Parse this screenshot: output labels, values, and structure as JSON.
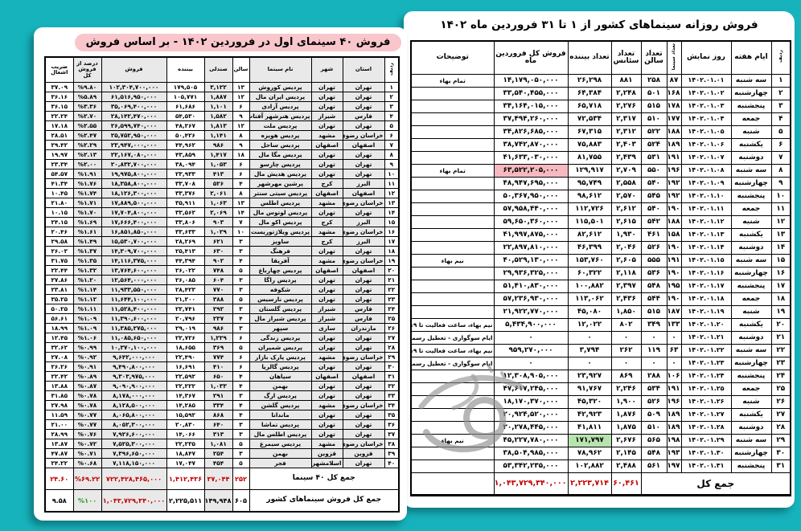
{
  "page": {
    "background_color": "#16b3bd",
    "accent_red": "#c10000",
    "accent_green": "#2c9a2c",
    "title_highlight_color": "#f9c6cc",
    "cell_pink": "#f6b9c0",
    "cell_green": "#b7e3ae"
  },
  "right_table": {
    "title": "فروش روزانه سینماهای کشور از ۱ تا ۳۱ فروردین ماه ۱۴۰۲",
    "headers": [
      "ردیف",
      "ایام هفته",
      "روز نمایش",
      "تعداد سینما",
      "تعداد سالن",
      "تعداد سئانس",
      "تعداد بیننده",
      "فروش کل فروردین ماه",
      "توضیحات"
    ],
    "rows": [
      [
        "۱",
        "سه شنبه",
        "۱۴۰۲.۰۱.۰۱",
        "۸۷",
        "۲۵۸",
        "۸۸۱",
        "۲۶,۲۹۸",
        "۱۴,۱۷۹,۰۵۰,۰۰۰",
        "تمام بهاء"
      ],
      [
        "۲",
        "چهارشنبه",
        "۱۴۰۲.۰۱.۰۲",
        "۱۶۸",
        "۵۰۱",
        "۲,۲۴۸",
        "۶۴,۳۸۴",
        "۳۳,۵۴۰,۴۵۵,۰۰۰",
        ""
      ],
      [
        "۳",
        "پنجشنبه",
        "۱۴۰۲.۰۱.۰۳",
        "۱۷۸",
        "۵۱۵",
        "۲,۲۷۶",
        "۶۵,۷۱۸",
        "۳۴,۱۶۴,۰۱۵,۰۰۰",
        ""
      ],
      [
        "۴",
        "جمعه",
        "۱۴۰۲.۰۱.۰۴",
        "۱۷۷",
        "۵۱۰",
        "۲,۳۱۷",
        "۷۲,۵۳۴",
        "۳۷,۴۹۴,۲۶۰,۰۰۰",
        ""
      ],
      [
        "۵",
        "شنبه",
        "۱۴۰۲.۰۱.۰۵",
        "۱۸۸",
        "۵۲۲",
        "۲,۳۱۲",
        "۶۷,۳۱۵",
        "۳۴,۸۲۶,۶۸۵,۰۰۰",
        ""
      ],
      [
        "۶",
        "یکشنبه",
        "۱۴۰۲.۰۱.۰۶",
        "۱۸۹",
        "۵۲۴",
        "۲,۴۰۳",
        "۷۵,۸۸۳",
        "۳۸,۷۴۲,۸۷۰,۰۰۰",
        ""
      ],
      [
        "۷",
        "دوشنبه",
        "۱۴۰۲.۰۱.۰۷",
        "۱۹۱",
        "۵۳۱",
        "۲,۴۳۹",
        "۸۱,۷۵۵",
        "۴۱,۶۳۳,۰۳۰,۰۰۰",
        ""
      ],
      [
        "۸",
        "سه شنبه",
        "۱۴۰۲.۰۱.۰۸",
        "۱۹۶",
        "۵۵۰",
        "۲,۷۰۹",
        "۱۲۹,۹۱۷",
        "۶۳,۵۲۲,۲۰۵,۰۰۰",
        "تمام بهاء"
      ],
      [
        "۹",
        "چهارشنبه",
        "۱۴۰۲.۰۱.۰۹",
        "۱۹۲",
        "۵۴۰",
        "۲,۵۵۸",
        "۹۵,۷۴۹",
        "۴۸,۹۴۷,۶۹۵,۰۰۰",
        ""
      ],
      [
        "۱۰",
        "پنجشنبه",
        "۱۴۰۲.۰۱.۱۰",
        "۱۹۲",
        "۵۴۵",
        "۲,۵۷۰",
        "۹۸,۶۱۲",
        "۵۰,۳۶۷,۹۵۰,۰۰۰",
        ""
      ],
      [
        "۱۱",
        "جمعه",
        "۱۴۰۲.۰۱.۱۱",
        "۱۹۰",
        "۵۴۰",
        "۲,۶۱۲",
        "۱۱۲,۷۲۶",
        "۵۷,۹۵۸,۴۴۰,۰۰۰",
        ""
      ],
      [
        "۱۲",
        "شنبه",
        "۱۴۰۲.۰۱.۱۲",
        "۱۸۸",
        "۵۴۲",
        "۲,۶۱۵",
        "۱۱۵,۵۰۱",
        "۵۹,۶۵۰,۳۶۰,۰۰۰",
        ""
      ],
      [
        "۱۳",
        "یکشنبه",
        "۱۴۰۲.۰۱.۱۳",
        "۱۵۸",
        "۴۶۱",
        "۱,۹۳۰",
        "۸۲,۶۱۲",
        "۴۱,۹۹۷,۸۷۵,۰۰۰",
        ""
      ],
      [
        "۱۴",
        "دوشنبه",
        "۱۴۰۲.۰۱.۱۴",
        "۱۹۰",
        "۵۲۶",
        "۲,۰۴۶",
        "۴۶,۳۹۹",
        "۲۲,۸۹۷,۸۱۰,۰۰۰",
        ""
      ],
      [
        "۱۵",
        "سه شنبه",
        "۱۴۰۲.۰۱.۱۵",
        "۱۹۱",
        "۵۵۵",
        "۲,۶۰۵",
        "۱۵۳,۷۶۰",
        "۴۰,۵۲۹,۱۳۰,۰۰۰",
        "نیم بهاء"
      ],
      [
        "۱۶",
        "چهارشنبه",
        "۱۴۰۲.۰۱.۱۶",
        "۱۹۰",
        "۵۳۶",
        "۲,۱۱۸",
        "۶۰,۳۲۲",
        "۲۹,۹۳۶,۳۲۵,۰۰۰",
        ""
      ],
      [
        "۱۷",
        "پنجشنبه",
        "۱۴۰۲.۰۱.۱۷",
        "۱۹۵",
        "۵۴۸",
        "۲,۳۹۷",
        "۱۰۰,۸۸۲",
        "۵۱,۴۱۰,۸۳۰,۰۰۰",
        ""
      ],
      [
        "۱۸",
        "جمعه",
        "۱۴۰۲.۰۱.۱۸",
        "۱۹۰",
        "۵۴۴",
        "۲,۴۳۶",
        "۱۱۳,۰۶۲",
        "۵۷,۲۳۶,۹۳۰,۰۰۰",
        ""
      ],
      [
        "۱۹",
        "شنبه",
        "۱۴۰۲.۰۱.۱۹",
        "۱۸۷",
        "۵۱۵",
        "۱,۸۵۰",
        "۴۵,۰۸۰",
        "۲۱,۹۲۲,۷۷۰,۰۰۰",
        ""
      ],
      [
        "۲۰",
        "یکشنبه",
        "۱۴۰۲.۰۱.۲۰",
        "۱۳۳",
        "۳۴۹",
        "۸۰۲",
        "۱۲,۰۲۲",
        "۵,۴۳۴,۹۰۰,۰۰۰",
        "نیم بهاء، ساعت فعالیت تا ۱۹"
      ],
      [
        "۲۱",
        "دوشنبه",
        "۱۴۰۲.۰۱.۲۱",
        "۰",
        "۰",
        "۰",
        "۰",
        "۰",
        "ایام سوگواری - تعطیل رسمی"
      ],
      [
        "۲۲",
        "سه شنبه",
        "۱۴۰۲.۰۱.۲۲",
        "۶۳",
        "۱۱۹",
        "۲۶۲",
        "۳,۷۹۴",
        "۹۵۹,۲۷۰,۰۰۰",
        "نیم بهاء، ساعت فعالیت تا ۱۹"
      ],
      [
        "۲۳",
        "چهارشنبه",
        "۱۴۰۲.۰۱.۲۳",
        "۰",
        "۰",
        "۰",
        "۰",
        "۰",
        "ایام سوگواری - تعطیل رسمی"
      ],
      [
        "۲۴",
        "پنجشنبه",
        "۱۴۰۲.۰۱.۲۴",
        "۱۰۶",
        "۲۸۸",
        "۸۶۹",
        "۲۳,۹۲۷",
        "۱۲,۳۰۸,۹۰۵,۰۰۰",
        ""
      ],
      [
        "۲۵",
        "جمعه",
        "۱۴۰۲.۰۱.۲۵",
        "۱۹۱",
        "۵۳۴",
        "۲,۲۴۶",
        "۹۱,۷۶۷",
        "۴۷,۶۱۷,۲۴۵,۰۰۰",
        ""
      ],
      [
        "۲۶",
        "شنبه",
        "۱۴۰۲.۰۱.۲۶",
        "۱۹۶",
        "۵۲۶",
        "۱,۹۰۰",
        "۴۵,۳۲۰",
        "۱۸,۱۷۰,۳۷۰,۰۰۰",
        ""
      ],
      [
        "۲۷",
        "یکشنبه",
        "۱۴۰۲.۰۱.۲۷",
        "۱۸۹",
        "۵۰۹",
        "۱,۸۷۶",
        "۴۲,۹۲۳",
        "۲۰,۹۲۴,۵۲۰,۰۰۰",
        ""
      ],
      [
        "۲۸",
        "دوشنبه",
        "۱۴۰۲.۰۱.۲۸",
        "۱۸۹",
        "۵۱۰",
        "۱,۸۷۵",
        "۴۱,۸۱۱",
        "۲۰,۲۷۸,۴۴۵,۰۰۰",
        ""
      ],
      [
        "۲۹",
        "سه شنبه",
        "۱۴۰۲.۰۱.۲۹",
        "۱۹۸",
        "۵۶۵",
        "۲,۶۷۶",
        "۱۷۱,۷۹۷",
        "۴۵,۲۲۷,۷۸۰,۰۰۰",
        "نیم بهاء"
      ],
      [
        "۳۰",
        "چهارشنبه",
        "۱۴۰۲.۰۱.۳۰",
        "۱۹۳",
        "۵۴۸",
        "۲,۱۴۵",
        "۷۸,۹۶۲",
        "۳۸,۵۰۴,۹۸۵,۰۰۰",
        ""
      ],
      [
        "۳۱",
        "پنجشنبه",
        "۱۴۰۲.۰۱.۳۱",
        "۱۹۷",
        "۵۶۱",
        "۲,۴۸۸",
        "۱۰۲,۸۸۲",
        "۵۳,۳۴۲,۲۳۵,۰۰۰",
        ""
      ]
    ],
    "highlights": [
      {
        "row": 7,
        "col": 7,
        "bg": "#f6b9c0"
      },
      {
        "row": 28,
        "col": 6,
        "bg": "#b7e3ae"
      }
    ],
    "total": {
      "label": "جمع کل",
      "cells": [
        "۶۰,۴۶۱",
        "۲,۲۲۳,۷۱۴",
        "۱,۰۴۳,۷۲۹,۳۴۰,۰۰۰",
        ""
      ],
      "cell_colors": [
        "red",
        "red",
        "red",
        "black"
      ]
    }
  },
  "left_table": {
    "title": "فروش ۴۰ سینمای اول در فروردین ۱۴۰۲ - بر اساس فروش",
    "headers": [
      "ردیف",
      "استان",
      "شهر",
      "نام سینما",
      "سالن",
      "صندلی",
      "بیننده",
      "فروش",
      "درصد از فروش کل",
      "ضریب اشغال"
    ],
    "rows": [
      [
        "۱",
        "تهران",
        "تهران",
        "پردیس کوروش",
        "۱۳",
        "۳,۱۲۲",
        "۱۷۹,۵۰۵",
        "۱۰۲,۳۰۴,۷۰۰,۰۰۰",
        "%۹.۸۰",
        "۳۷.۰۹"
      ],
      [
        "۲",
        "تهران",
        "تهران",
        "پردیس ایران مال",
        "۱۲",
        "۱,۸۸۷",
        "۱۰۵,۷۷۱",
        "۶۱,۵۱۶,۹۵۰,۰۰۰",
        "%۵.۸۹",
        "۳۶.۱۶"
      ],
      [
        "۳",
        "تهران",
        "تهران",
        "پردیس آزادی",
        "۶",
        "۱,۱۰۱",
        "۶۱,۶۸۶",
        "۳۵,۰۶۹,۴۰۰,۰۰۰",
        "%۳.۳۶",
        "۳۶.۱۵"
      ],
      [
        "۴",
        "فارس",
        "شیراز",
        "پردیس هنرشهر آفتاب",
        "۹",
        "۱,۵۸۲",
        "۵۴,۵۳۰",
        "۲۸,۱۴۲,۴۷۰,۰۰۰",
        "%۲.۷۰",
        "۲۲.۲۴"
      ],
      [
        "۵",
        "تهران",
        "تهران",
        "پردیس ملت",
        "۱۲",
        "۱,۸۱۳",
        "۴۸,۲۶۷",
        "۲۶,۵۹۹,۷۴۰,۰۰۰",
        "%۲.۵۵",
        "۱۷.۱۸"
      ],
      [
        "۶",
        "خراسان رضوی",
        "مشهد",
        "پردیس هویزه",
        "۸",
        "۱,۱۴۱",
        "۵۰,۴۲۶",
        "۲۵,۷۵۲,۹۵۰,۰۰۰",
        "%۲.۴۷",
        "۲۸.۵۱"
      ],
      [
        "۷",
        "اصفهان",
        "اصفهان",
        "پردیس ساحل",
        "۹",
        "۹۸۶",
        "۴۴,۹۶۲",
        "۲۳,۹۴۷,۰۰۰,۰۰۰",
        "%۲.۲۹",
        "۲۹.۴۲"
      ],
      [
        "۸",
        "تهران",
        "تهران",
        "پردیس مگا مال",
        "۱۸",
        "۱,۴۱۷",
        "۴۳,۸۵۹",
        "۲۲,۱۶۷,۰۸۰,۰۰۰",
        "%۲.۱۳",
        "۱۹.۹۷"
      ],
      [
        "۹",
        "تهران",
        "تهران",
        "پردیس چارسو",
        "۶",
        "۱,۰۵۳",
        "۳۸,۰۹۴",
        "۲۰,۸۳۲,۷۰۰,۰۰۰",
        "%۲.۰۰",
        "۲۳.۳۴"
      ],
      [
        "۱۰",
        "تهران",
        "تهران",
        "پردیس هدیش مال",
        "۶",
        "۴۱۳",
        "۲۳,۹۳۳",
        "۱۹,۹۷۵,۸۰۰,۰۰۰",
        "%۱.۹۱",
        "۵۴.۵۷"
      ],
      [
        "۱۱",
        "البرز",
        "کرج",
        "پرشین مهرشهر",
        "۴",
        "۵۲۶",
        "۳۳,۷۰۸",
        "۱۸,۳۵۸,۸۰۰,۰۰۰",
        "%۱.۷۶",
        "۴۱.۳۴"
      ],
      [
        "۱۲",
        "اصفهان",
        "اصفهان",
        "پردیس سیتی سنتر",
        "۸",
        "۲,۰۶۱",
        "۳۳,۳۷۶",
        "۱۸,۱۲۶,۳۰۰,۰۰۰",
        "%۱.۷۴",
        "۱۰.۴۵"
      ],
      [
        "۱۳",
        "خراسان رضوی",
        "مشهد",
        "پردیس اطلس",
        "۱۳",
        "۱,۰۶۳",
        "۳۵,۹۱۱",
        "۱۷,۸۸۹,۵۰۰,۰۰۰",
        "%۱.۷۱",
        "۲۱.۸۰"
      ],
      [
        "۱۴",
        "تهران",
        "تهران",
        "پردیس لوتوس مال",
        "۱۴",
        "۲,۰۶۹",
        "۳۳,۵۶۲",
        "۱۷,۷۰۴,۸۰۰,۰۰۰",
        "%۱.۷۰",
        "۱۰.۱۵"
      ],
      [
        "۱۵",
        "البرز",
        "کرج",
        "پردیس اکو مال",
        "۷",
        "۹۰۳",
        "۳۳,۸۰۶",
        "۱۷,۶۶۶,۴۰۰,۰۰۰",
        "%۱.۶۹",
        "۲۴.۱۵"
      ],
      [
        "۱۶",
        "خراسان رضوی",
        "مشهد",
        "پردیس ویلاژتوریست",
        "۱۰",
        "۱,۰۲۹",
        "۳۳,۶۳۳",
        "۱۶,۸۵۱,۸۵۰,۰۰۰",
        "%۱.۶۱",
        "۲۰.۴۶"
      ],
      [
        "۱۷",
        "البرز",
        "کرج",
        "ساویز",
        "۳",
        "۶۲۱",
        "۲۸,۲۶۹",
        "۱۵,۵۳۰,۷۰۰,۰۰۰",
        "%۱.۴۹",
        "۲۹.۵۸"
      ],
      [
        "۱۸",
        "تهران",
        "تهران",
        "فرهنگ",
        "۳",
        "۶۳۰",
        "۲۵,۴۱۳",
        "۱۴,۳۰۹,۷۰۰,۰۰۰",
        "%۱.۳۷",
        "۲۶.۰۲"
      ],
      [
        "۱۹",
        "خراسان رضوی",
        "مشهد",
        "آفریقا",
        "۴",
        "۹۰۲",
        "۴۴,۳۹۴",
        "۱۴,۱۱۶,۳۷۵,۰۰۰",
        "%۱.۳۵",
        "۳۱.۷۵"
      ],
      [
        "۲۰",
        "اصفهان",
        "اصفهان",
        "پردیس چهارباغ",
        "۵",
        "۷۴۸",
        "۲۶,۰۲۲",
        "۱۳,۷۶۴,۶۰۰,۰۰۰",
        "%۱.۳۲",
        "۲۲.۴۴"
      ],
      [
        "۲۱",
        "تهران",
        "تهران",
        "پردیس راگا",
        "۳",
        "۶۰۴",
        "۲۶,۰۸۵",
        "۱۲,۵۶۴,۰۰۰,۰۰۰",
        "%۱.۲۰",
        "۲۷.۸۶"
      ],
      [
        "۲۲",
        "تهران",
        "تهران",
        "شکوفه",
        "۳",
        "۷۷۰",
        "۲۸,۴۲۳",
        "۱۱,۹۳۳,۵۵۰,۰۰۰",
        "%۱.۱۴",
        "۲۳.۸۱"
      ],
      [
        "۲۳",
        "تهران",
        "تهران",
        "پردیس نارسیس",
        "۵",
        "۳۸۸",
        "۲۱,۲۰۰",
        "۱۱,۶۴۴,۱۰۰,۰۰۰",
        "%۱.۱۲",
        "۳۵.۲۵"
      ],
      [
        "۲۴",
        "فارس",
        "شیراز",
        "پردیس گلستان",
        "۳",
        "۲۹۲",
        "۲۲,۷۴۱",
        "۱۱,۵۲۸,۴۰۰,۰۰۰",
        "%۱.۱۱",
        "۵۰.۲۵"
      ],
      [
        "۲۵",
        "فارس",
        "شیراز",
        "پردیس شیراز مال",
        "۴",
        "۲۳۷",
        "۲۰,۷۹۶",
        "۱۱,۳۹۰,۶۰۰,۰۰۰",
        "%۱.۰۹",
        "۵۶.۶۱"
      ],
      [
        "۲۶",
        "مازندران",
        "ساری",
        "سپهر",
        "۳",
        "۹۸۶",
        "۲۹,۰۱۹",
        "۱۱,۳۸۵,۲۷۵,۰۰۰",
        "%۱.۰۹",
        "۱۸.۹۹"
      ],
      [
        "۲۷",
        "تهران",
        "تهران",
        "پردیس زندگی",
        "۶",
        "۱,۲۲۹",
        "۲۲,۷۲۶",
        "۱۱,۰۸۵,۶۵۰,۰۰۰",
        "%۱.۰۶",
        "۱۲.۴۵"
      ],
      [
        "۲۸",
        "تهران",
        "تهران",
        "پردیس شمیران",
        "۵",
        "۳۶۹",
        "۱۸,۶۵۵",
        "۱۰,۳۷۰,۱۰۰,۰۰۰",
        "%۰.۹۹",
        "۳۲.۶۲"
      ],
      [
        "۲۹",
        "خراسان رضوی",
        "مشهد",
        "پردیس پارک بازار",
        "۶",
        "۷۷۴",
        "۲۲,۴۹۰",
        "۹,۶۴۲,۰۰۰,۰۰۰",
        "%۰.۹۲",
        "۲۷.۰۸"
      ],
      [
        "۳۰",
        "تهران",
        "تهران",
        "پردیس گالریا",
        "۶",
        "۴۱۰",
        "۱۶,۶۹۱",
        "۹,۴۹۰,۸۰۰,۰۰۰",
        "%۰.۹۱",
        "۲۶.۲۶"
      ],
      [
        "۳۱",
        "اصفهان",
        "اصفهان",
        "سپاهان",
        "۴",
        "۶۵۰",
        "۲۲,۵۹۲",
        "۹,۳۰۳,۹۷۵,۰۰۰",
        "%۰.۸۹",
        "۲۲.۴۲"
      ],
      [
        "۳۲",
        "تهران",
        "تهران",
        "بهمن",
        "۴",
        "۱,۰۳۳",
        "۲۲,۲۲۲",
        "۹,۰۹۰,۹۰۰,۰۰۰",
        "%۰.۸۷",
        "۱۳.۸۸"
      ],
      [
        "۳۳",
        "تهران",
        "تهران",
        "پردیس ارگ",
        "۳",
        "۲۹۱",
        "۱۴,۳۶۷",
        "۸,۱۷۸,۰۰۰,۰۰۰",
        "%۰.۷۸",
        "۳۱.۸۵"
      ],
      [
        "۳۴",
        "خراسان رضوی",
        "مشهد",
        "پردیس گلشن",
        "۴",
        "۳۳۴",
        "۱۴,۲۸۵",
        "۸,۱۲۸,۵۰۰,۰۰۰",
        "%۰.۷۸",
        "۲۷.۹۸"
      ],
      [
        "۳۵",
        "تهران",
        "تهران",
        "ماندانا",
        "۴",
        "۸۶۸",
        "۱۵,۵۹۲",
        "۸,۰۶۵,۸۰۰,۰۰۰",
        "%۰.۷۷",
        "۱۱.۵۹"
      ],
      [
        "۳۶",
        "تهران",
        "تهران",
        "پردیس تماشا",
        "۳",
        "۶۴۰",
        "۲۰,۸۳۰",
        "۸,۰۵۲,۳۰۰,۰۰۰",
        "%۰.۷۷",
        "۲۱.۰۰"
      ],
      [
        "۳۷",
        "تهران",
        "تهران",
        "پردیس اطلس مال",
        "۳",
        "۳۱۳",
        "۱۴,۰۶۶",
        "۷,۹۲۶,۶۰۰,۰۰۰",
        "%۰.۷۶",
        "۲۸.۹۹"
      ],
      [
        "۳۸",
        "خراسان رضوی",
        "مشهد",
        "پردیس سیمرغ",
        "۵",
        "۱,۰۸۱",
        "۲۲,۲۳۵",
        "۷,۵۲۵,۳۰۰,۰۰۰",
        "%۰.۷۲",
        "۱۳.۸۷"
      ],
      [
        "۳۹",
        "قزوین",
        "قزوین",
        "بهمن",
        "۳",
        "۲۵۴",
        "۱۸,۸۴۷",
        "۷,۳۹۶,۶۵۰,۰۰۰",
        "%۰.۷۱",
        "۴۷.۸۷"
      ],
      [
        "۴۰",
        "تهران",
        "اسلامشهر",
        "فجر",
        "۵",
        "۴۵۴",
        "۱۷,۰۴۷",
        "۷,۱۱۸,۱۵۰,۰۰۰",
        "%۰.۶۸",
        "۲۴.۲۲"
      ]
    ],
    "totals": [
      {
        "label": "جمع کل ۴۰ سینما",
        "cells": [
          "۲۵۲",
          "۳۷,۰۴۴",
          "۱,۴۱۲,۴۳۶",
          "۷۲۲,۴۲۸,۴۶۵,۰۰۰",
          "%۶۹.۲۲",
          "۲۴.۶۰"
        ],
        "cell_colors": [
          "red",
          "red",
          "red",
          "red",
          "red",
          "red"
        ]
      },
      {
        "label": "جمع کل فروش سینماهای کشور",
        "cells": [
          "۶۰۵",
          "۱۴۹,۹۴۸",
          "۲,۲۲۵,۵۱۱",
          "۱,۰۴۳,۷۲۹,۳۴۰,۰۰۰",
          "%۱۰۰",
          "۹.۵۸"
        ],
        "cell_colors": [
          "black",
          "black",
          "black",
          "red",
          "green",
          "black"
        ]
      }
    ]
  }
}
